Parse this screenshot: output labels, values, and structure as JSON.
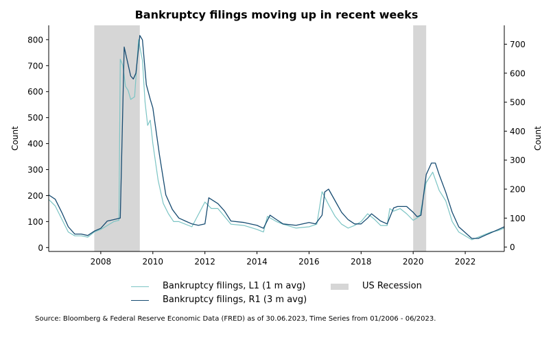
{
  "chart_data": {
    "type": "line",
    "title": "Bankruptcy filings moving up in recent weeks",
    "ylabel_left": "Count",
    "ylabel_right": "Count",
    "xlim": [
      2006.0,
      2023.5
    ],
    "ylim_left": [
      -15,
      855
    ],
    "ylim_right": [
      -15,
      765
    ],
    "x_ticks": [
      2008,
      2010,
      2012,
      2014,
      2016,
      2018,
      2020,
      2022
    ],
    "y_ticks_left": [
      0,
      100,
      200,
      300,
      400,
      500,
      600,
      700,
      800
    ],
    "y_ticks_right": [
      0,
      100,
      200,
      300,
      400,
      500,
      600,
      700
    ],
    "grid": false,
    "legend_position": "bottom",
    "recessions": [
      {
        "start": 2007.75,
        "end": 2009.5
      },
      {
        "start": 2020.0,
        "end": 2020.5
      }
    ],
    "series": [
      {
        "name": "Bankruptcy filings, L1 (1 m avg)",
        "axis": "left",
        "color": "#7bc4c4",
        "x": [
          2006.0,
          2006.25,
          2006.5,
          2006.75,
          2007.0,
          2007.25,
          2007.5,
          2007.75,
          2008.0,
          2008.25,
          2008.5,
          2008.7,
          2008.75,
          2008.85,
          2008.95,
          2009.05,
          2009.15,
          2009.3,
          2009.45,
          2009.6,
          2009.7,
          2009.8,
          2009.9,
          2010.0,
          2010.2,
          2010.4,
          2010.6,
          2010.8,
          2011.0,
          2011.5,
          2012.0,
          2012.25,
          2012.5,
          2012.75,
          2013.0,
          2013.5,
          2014.0,
          2014.25,
          2014.4,
          2014.75,
          2015.0,
          2015.5,
          2016.0,
          2016.3,
          2016.5,
          2016.75,
          2017.0,
          2017.25,
          2017.5,
          2017.75,
          2018.0,
          2018.25,
          2018.5,
          2018.75,
          2019.0,
          2019.1,
          2019.25,
          2019.5,
          2019.75,
          2020.0,
          2020.25,
          2020.5,
          2020.75,
          2021.0,
          2021.25,
          2021.5,
          2021.75,
          2022.0,
          2022.25,
          2022.5,
          2022.75,
          2023.0,
          2023.25,
          2023.5
        ],
        "values": [
          185,
          160,
          110,
          60,
          45,
          45,
          40,
          60,
          70,
          85,
          100,
          105,
          725,
          700,
          620,
          605,
          570,
          580,
          800,
          720,
          560,
          470,
          490,
          400,
          260,
          170,
          130,
          100,
          100,
          80,
          175,
          150,
          150,
          120,
          90,
          85,
          70,
          60,
          120,
          100,
          90,
          75,
          80,
          90,
          215,
          165,
          120,
          90,
          75,
          85,
          100,
          130,
          110,
          85,
          85,
          150,
          140,
          150,
          130,
          105,
          120,
          250,
          290,
          220,
          180,
          100,
          60,
          45,
          30,
          40,
          50,
          60,
          65,
          75
        ]
      },
      {
        "name": "Bankruptcy filings, R1 (3 m avg)",
        "axis": "right",
        "color": "#154a70",
        "x": [
          2006.0,
          2006.25,
          2006.5,
          2006.75,
          2007.0,
          2007.25,
          2007.5,
          2007.75,
          2008.0,
          2008.25,
          2008.5,
          2008.75,
          2008.9,
          2009.0,
          2009.15,
          2009.25,
          2009.35,
          2009.5,
          2009.6,
          2009.75,
          2009.9,
          2010.0,
          2010.25,
          2010.5,
          2010.75,
          2011.0,
          2011.25,
          2011.5,
          2011.75,
          2012.0,
          2012.15,
          2012.5,
          2012.75,
          2013.0,
          2013.5,
          2014.0,
          2014.25,
          2014.5,
          2014.75,
          2015.0,
          2015.5,
          2016.0,
          2016.25,
          2016.5,
          2016.6,
          2016.75,
          2017.0,
          2017.25,
          2017.5,
          2017.75,
          2018.0,
          2018.25,
          2018.4,
          2018.75,
          2019.0,
          2019.25,
          2019.4,
          2019.75,
          2020.0,
          2020.15,
          2020.3,
          2020.5,
          2020.7,
          2020.85,
          2021.0,
          2021.25,
          2021.5,
          2021.75,
          2022.0,
          2022.25,
          2022.5,
          2022.75,
          2023.0,
          2023.25,
          2023.5
        ],
        "values": [
          180,
          165,
          120,
          70,
          45,
          45,
          40,
          55,
          65,
          90,
          95,
          100,
          690,
          650,
          590,
          580,
          600,
          730,
          715,
          560,
          510,
          480,
          320,
          180,
          130,
          100,
          90,
          80,
          75,
          80,
          170,
          150,
          125,
          90,
          85,
          75,
          65,
          110,
          95,
          80,
          75,
          85,
          80,
          110,
          190,
          200,
          160,
          120,
          95,
          80,
          80,
          100,
          115,
          90,
          80,
          135,
          140,
          140,
          120,
          105,
          110,
          250,
          290,
          290,
          250,
          190,
          120,
          70,
          50,
          30,
          30,
          40,
          50,
          60,
          70
        ]
      }
    ]
  },
  "legend": {
    "series1_label": "Bankruptcy filings, L1 (1 m avg)",
    "series2_label": "Bankruptcy filings, R1 (3 m avg)",
    "recession_label": "US Recession",
    "recession_color": "#d6d6d6"
  },
  "source": "Source: Bloomberg & Federal Reserve Economic Data (FRED) as of 30.06.2023, Time Series from 01/2006 - 06/2023."
}
